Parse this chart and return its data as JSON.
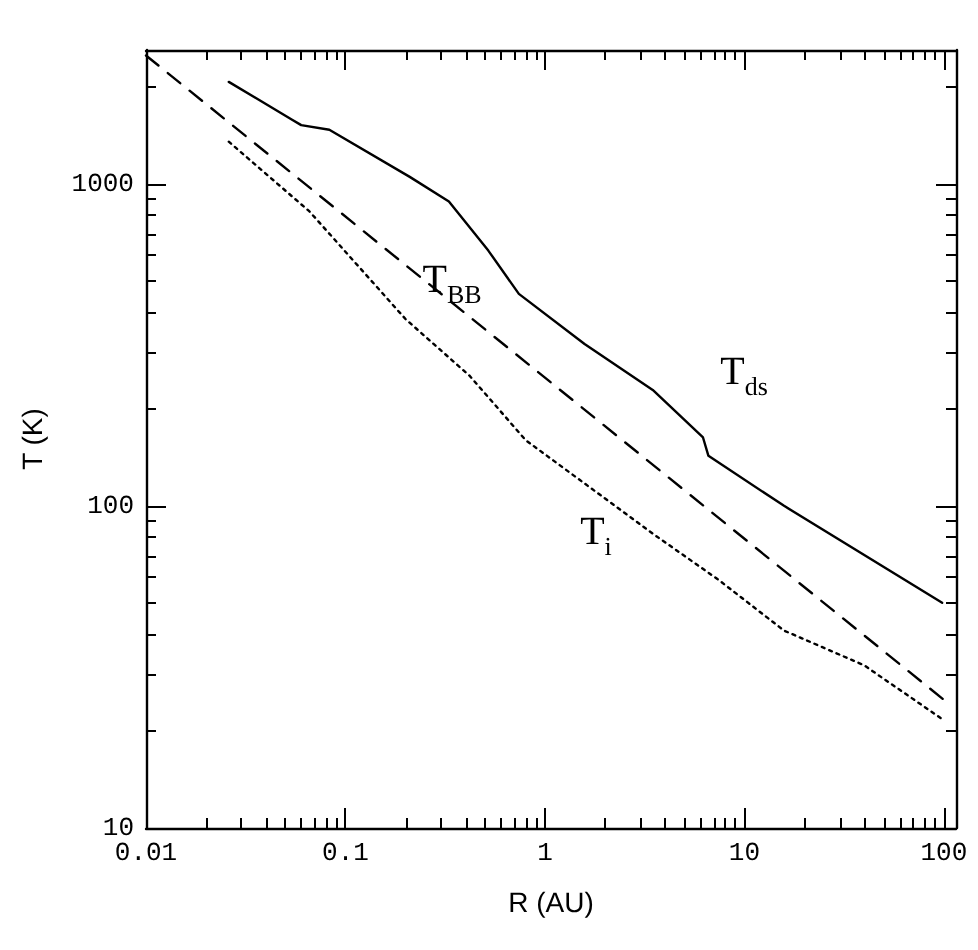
{
  "chart_data": {
    "type": "line",
    "xlabel": "R (AU)",
    "ylabel": "T (K)",
    "log": "xy",
    "grid": false,
    "marker": "none",
    "xlim": [
      0.01,
      115
    ],
    "xticks": [
      0.01,
      0.1,
      1,
      10,
      100
    ],
    "ylim": [
      10,
      2600
    ],
    "yticks": [
      10,
      100,
      1000
    ],
    "series": [
      {
        "color": "#000000",
        "line_style": "solid",
        "x": [
          0.026,
          0.054,
          0.06,
          0.083,
          0.21,
          0.33,
          0.52,
          0.74,
          1.58,
          3.47,
          6.2,
          6.6,
          15.8,
          98
        ],
        "values": [
          2070,
          1580,
          1520,
          1470,
          1050,
          880,
          620,
          455,
          318,
          229,
          163,
          143,
          100,
          50
        ]
      },
      {
        "color": "#000000",
        "line_style": "dashed",
        "x": [
          0.01,
          1,
          100
        ],
        "values": [
          2500,
          250,
          25
        ]
      },
      {
        "color": "#000000",
        "line_style": "dotted",
        "x": [
          0.026,
          0.066,
          0.2,
          0.42,
          0.8,
          3.47,
          7.4,
          15.8,
          39.8,
          100
        ],
        "values": [
          1350,
          820,
          380,
          253,
          160,
          82,
          59,
          41,
          32,
          21.6
        ]
      }
    ],
    "annotations": [
      "T$_{BB}$",
      "T$_{ds}$",
      "T$_{i}$"
    ]
  }
}
